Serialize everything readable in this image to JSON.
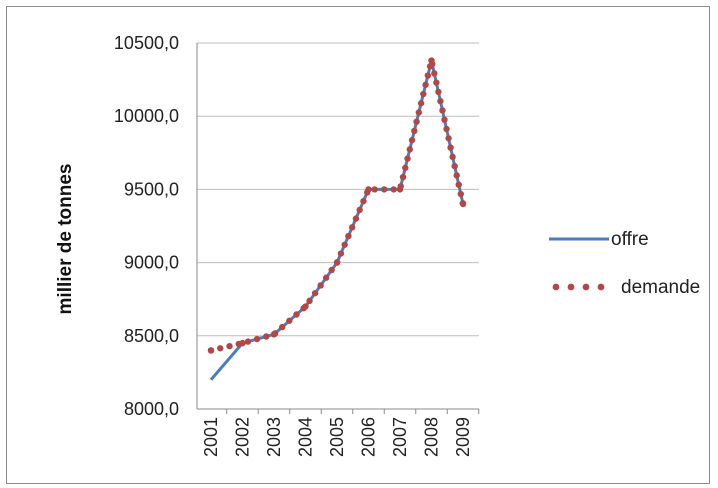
{
  "chart_data": {
    "type": "line",
    "title": "",
    "xlabel": "",
    "ylabel": "millier de tonnes",
    "categories": [
      "2001",
      "2002",
      "2003",
      "2004",
      "2005",
      "2006",
      "2007",
      "2008",
      "2009"
    ],
    "ylim": [
      8000,
      10500
    ],
    "yticks": [
      "8000,0",
      "8500,0",
      "9000,0",
      "9500,0",
      "10000,0",
      "10500,0"
    ],
    "ytick_values": [
      8000,
      8500,
      9000,
      9500,
      10000,
      10500
    ],
    "grid": "horizontal",
    "legend_position": "right",
    "series": [
      {
        "name": "offre",
        "style": "solid",
        "color": "#4a7ebb",
        "values": [
          8200,
          8450,
          8510,
          8700,
          9000,
          9500,
          9500,
          10380,
          9400
        ]
      },
      {
        "name": "demande",
        "style": "dotted",
        "color": "#b04848",
        "values": [
          8400,
          8450,
          8510,
          8700,
          9000,
          9500,
          9500,
          10380,
          9400
        ]
      }
    ]
  }
}
